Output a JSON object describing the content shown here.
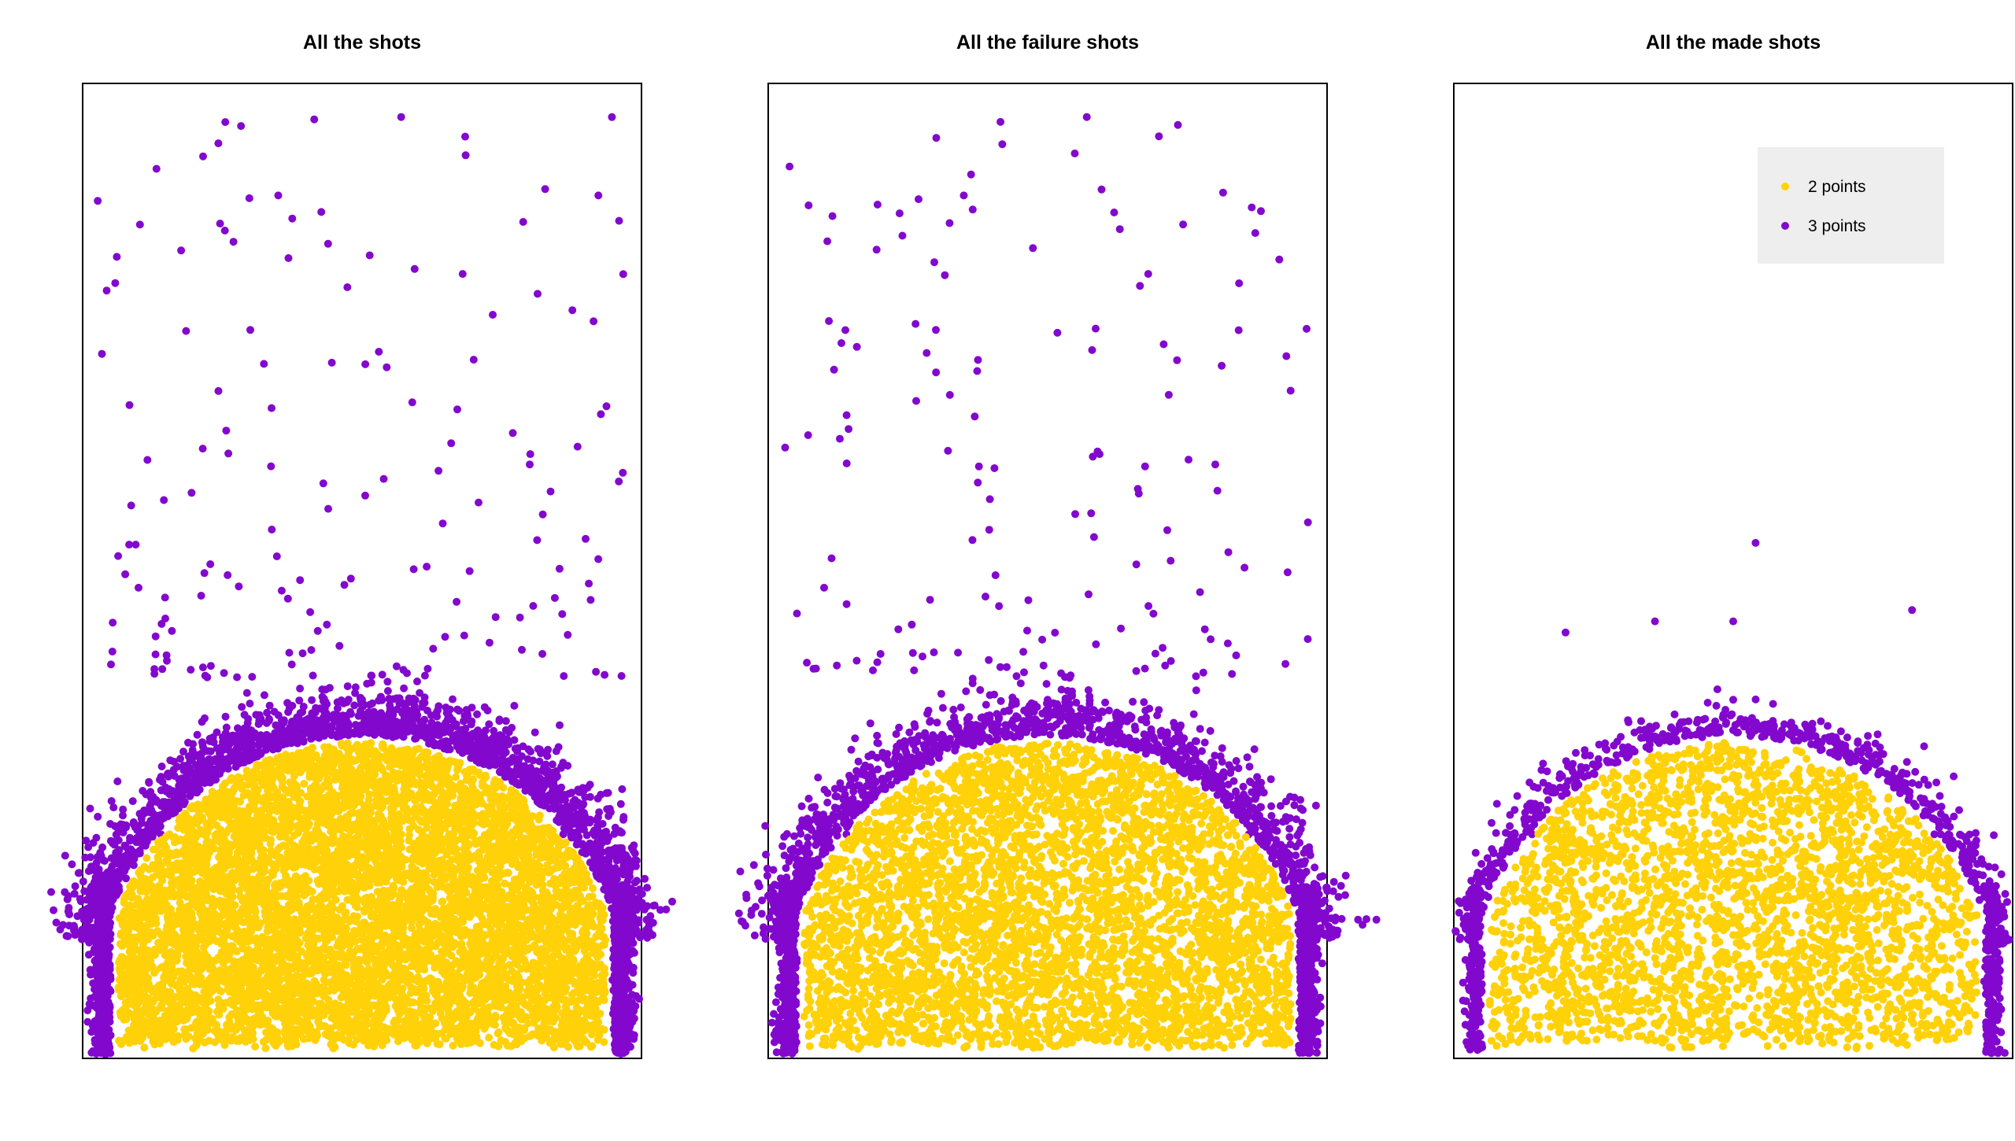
{
  "colors": {
    "two_points": "#FFD109",
    "three_points": "#8308CE",
    "legend_background": "#EEEEEE",
    "frame": "#000000"
  },
  "legend": {
    "entries": [
      {
        "label": "2 points",
        "color": "#FFD109"
      },
      {
        "label": "3 points",
        "color": "#8308CE"
      }
    ]
  },
  "chart_data": [
    {
      "type": "scatter",
      "title": "All the shots",
      "xlabel": "",
      "ylabel": "",
      "xlim": [
        -250,
        250
      ],
      "ylim": [
        -50,
        820
      ],
      "axes_visible": false,
      "grid": false,
      "legend": null,
      "series": [
        {
          "name": "2 points",
          "color": "#FFD109",
          "approx_count": 8500,
          "region": "points inside the three-point arc (radius < 237.5)",
          "points": [
            [
              -150,
              30
            ],
            [
              -90,
              110
            ],
            [
              -40,
              180
            ],
            [
              0,
              200
            ],
            [
              40,
              170
            ],
            [
              95,
              120
            ],
            [
              160,
              40
            ],
            [
              210,
              10
            ],
            [
              -200,
              10
            ],
            [
              0,
              60
            ],
            [
              -60,
              60
            ],
            [
              120,
              70
            ]
          ]
        },
        {
          "name": "3 points",
          "color": "#8308CE",
          "approx_count": 4000,
          "region": "band just outside the arc plus sparse long-range attempts up to y≈790",
          "points": [
            [
              -225,
              10
            ],
            [
              -235,
              60
            ],
            [
              -180,
              150
            ],
            [
              -120,
              230
            ],
            [
              0,
              270
            ],
            [
              120,
              230
            ],
            [
              180,
              150
            ],
            [
              230,
              60
            ],
            [
              224,
              20
            ],
            [
              -200,
              370
            ],
            [
              -100,
              600
            ],
            [
              -75,
              720
            ],
            [
              35,
              790
            ],
            [
              90,
              650
            ],
            [
              150,
              480
            ]
          ]
        }
      ]
    },
    {
      "type": "scatter",
      "title": "All the failure shots",
      "xlabel": "",
      "ylabel": "",
      "xlim": [
        -250,
        250
      ],
      "ylim": [
        -50,
        820
      ],
      "axes_visible": false,
      "grid": false,
      "legend": null,
      "series": [
        {
          "name": "2 points",
          "color": "#FFD109",
          "approx_count": 4500,
          "region": "points inside the three-point arc (radius < 237.5)",
          "points": [
            [
              -150,
              30
            ],
            [
              -90,
              110
            ],
            [
              -40,
              180
            ],
            [
              0,
              200
            ],
            [
              40,
              170
            ],
            [
              95,
              120
            ],
            [
              160,
              40
            ],
            [
              210,
              10
            ],
            [
              0,
              60
            ],
            [
              120,
              70
            ]
          ]
        },
        {
          "name": "3 points",
          "color": "#8308CE",
          "approx_count": 2700,
          "region": "band just outside the arc plus sparse long-range attempts",
          "points": [
            [
              -225,
              10
            ],
            [
              -235,
              60
            ],
            [
              -180,
              150
            ],
            [
              -120,
              230
            ],
            [
              0,
              270
            ],
            [
              120,
              230
            ],
            [
              180,
              150
            ],
            [
              230,
              60
            ],
            [
              -200,
              370
            ],
            [
              -100,
              600
            ],
            [
              -75,
              720
            ],
            [
              35,
              790
            ],
            [
              90,
              650
            ],
            [
              150,
              480
            ]
          ]
        }
      ]
    },
    {
      "type": "scatter",
      "title": "All the made shots",
      "xlabel": "",
      "ylabel": "",
      "xlim": [
        -250,
        250
      ],
      "ylim": [
        -50,
        820
      ],
      "axes_visible": false,
      "grid": false,
      "legend": "top-right",
      "series": [
        {
          "name": "2 points",
          "color": "#FFD109",
          "approx_count": 3200,
          "region": "points inside the three-point arc (radius < 237.5)",
          "points": [
            [
              -150,
              30
            ],
            [
              -90,
              110
            ],
            [
              -40,
              180
            ],
            [
              0,
              200
            ],
            [
              40,
              170
            ],
            [
              95,
              120
            ],
            [
              160,
              40
            ],
            [
              210,
              10
            ],
            [
              0,
              60
            ]
          ]
        },
        {
          "name": "3 points",
          "color": "#8308CE",
          "approx_count": 1100,
          "region": "band just outside the arc, a few attempts up to y≈400",
          "points": [
            [
              -225,
              10
            ],
            [
              -235,
              60
            ],
            [
              -180,
              150
            ],
            [
              -120,
              230
            ],
            [
              0,
              270
            ],
            [
              120,
              230
            ],
            [
              180,
              150
            ],
            [
              230,
              60
            ],
            [
              -150,
              330
            ],
            [
              -70,
              340
            ],
            [
              0,
              340
            ],
            [
              20,
              410
            ],
            [
              160,
              350
            ]
          ]
        }
      ]
    }
  ]
}
